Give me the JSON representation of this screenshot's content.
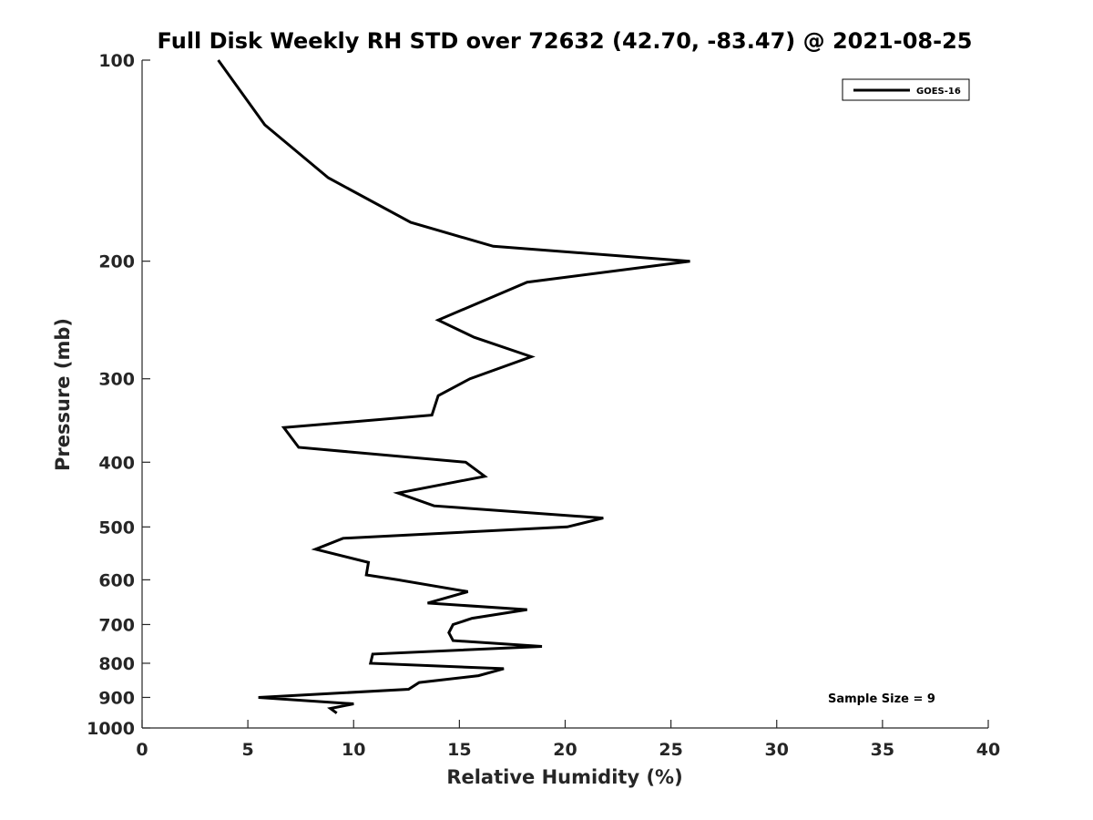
{
  "chart_data": {
    "type": "line",
    "title": "Full Disk Weekly RH STD over 72632 (42.70, -83.47) @ 2021-08-25",
    "xlabel": "Relative Humidity (%)",
    "ylabel": "Pressure (mb)",
    "xlim": [
      0,
      40
    ],
    "ylim": [
      100,
      1000
    ],
    "yscale": "log",
    "x_ticks": [
      0,
      5,
      10,
      15,
      20,
      25,
      30,
      35,
      40
    ],
    "y_ticks": [
      100,
      200,
      300,
      400,
      500,
      600,
      700,
      800,
      900,
      1000
    ],
    "legend_position": "top-right",
    "annotation": "Sample Size = 9",
    "series": [
      {
        "name": "GOES-16",
        "color": "#000000",
        "points": [
          [
            3.6,
            100
          ],
          [
            5.8,
            125
          ],
          [
            8.8,
            150
          ],
          [
            12.7,
            175
          ],
          [
            16.6,
            190
          ],
          [
            25.9,
            200
          ],
          [
            18.2,
            215
          ],
          [
            14.0,
            245
          ],
          [
            15.7,
            260
          ],
          [
            18.4,
            278
          ],
          [
            15.5,
            300
          ],
          [
            14.0,
            318
          ],
          [
            13.7,
            340
          ],
          [
            6.7,
            355
          ],
          [
            7.4,
            380
          ],
          [
            15.3,
            400
          ],
          [
            16.2,
            420
          ],
          [
            12.1,
            445
          ],
          [
            13.8,
            465
          ],
          [
            21.8,
            485
          ],
          [
            20.1,
            500
          ],
          [
            9.5,
            520
          ],
          [
            8.2,
            540
          ],
          [
            10.7,
            565
          ],
          [
            10.6,
            590
          ],
          [
            12.1,
            600
          ],
          [
            15.4,
            625
          ],
          [
            13.5,
            650
          ],
          [
            18.2,
            665
          ],
          [
            15.6,
            685
          ],
          [
            14.7,
            700
          ],
          [
            14.5,
            720
          ],
          [
            14.7,
            740
          ],
          [
            18.9,
            755
          ],
          [
            10.9,
            775
          ],
          [
            10.8,
            800
          ],
          [
            17.1,
            815
          ],
          [
            15.9,
            835
          ],
          [
            13.1,
            855
          ],
          [
            12.6,
            875
          ],
          [
            5.5,
            900
          ],
          [
            10.0,
            920
          ],
          [
            8.9,
            935
          ],
          [
            9.2,
            950
          ]
        ]
      }
    ]
  }
}
